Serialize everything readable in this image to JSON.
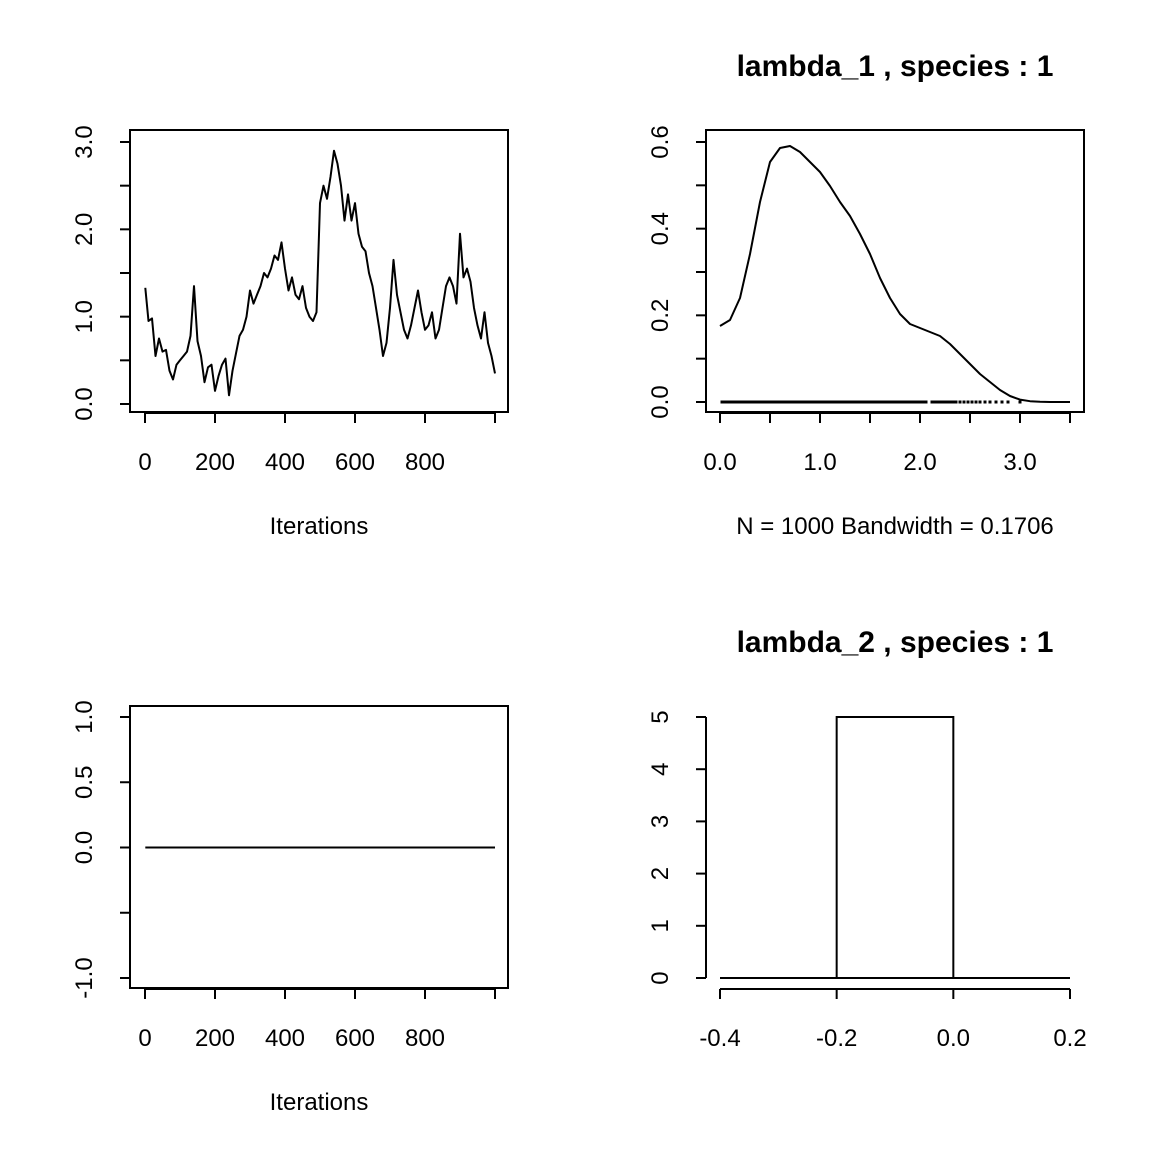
{
  "chart_data": [
    {
      "type": "line",
      "title": "",
      "xlabel": "Iterations",
      "ylabel": "",
      "xlim": [
        0,
        1000
      ],
      "ylim": [
        0,
        3.0
      ],
      "x_ticks": [
        "0",
        "200",
        "400",
        "600",
        "800",
        ""
      ],
      "y_ticks": [
        "0.0",
        "",
        "1.0",
        "",
        "2.0",
        "",
        "3.0"
      ],
      "series": [
        {
          "x": [
            1,
            10,
            20,
            30,
            40,
            50,
            60,
            70,
            80,
            90,
            100,
            110,
            120,
            130,
            140,
            150,
            160,
            170,
            180,
            190,
            200,
            210,
            220,
            230,
            240,
            250,
            260,
            270,
            280,
            290,
            300,
            310,
            320,
            330,
            340,
            350,
            360,
            370,
            380,
            390,
            400,
            410,
            420,
            430,
            440,
            450,
            460,
            470,
            480,
            490,
            500,
            510,
            520,
            530,
            540,
            550,
            560,
            570,
            580,
            590,
            600,
            610,
            620,
            630,
            640,
            650,
            660,
            670,
            680,
            690,
            700,
            710,
            720,
            730,
            740,
            750,
            760,
            770,
            780,
            790,
            800,
            810,
            820,
            830,
            840,
            850,
            860,
            870,
            880,
            890,
            900,
            910,
            920,
            930,
            940,
            950,
            960,
            970,
            980,
            990,
            1000
          ],
          "values": [
            1.33,
            0.95,
            0.98,
            0.55,
            0.75,
            0.6,
            0.62,
            0.38,
            0.28,
            0.45,
            0.5,
            0.55,
            0.6,
            0.78,
            1.35,
            0.72,
            0.55,
            0.25,
            0.42,
            0.45,
            0.15,
            0.32,
            0.45,
            0.52,
            0.1,
            0.38,
            0.58,
            0.78,
            0.85,
            1.0,
            1.3,
            1.15,
            1.25,
            1.35,
            1.5,
            1.45,
            1.55,
            1.7,
            1.65,
            1.85,
            1.55,
            1.3,
            1.45,
            1.25,
            1.2,
            1.35,
            1.1,
            1.0,
            0.95,
            1.05,
            2.3,
            2.5,
            2.35,
            2.6,
            2.9,
            2.75,
            2.5,
            2.1,
            2.4,
            2.1,
            2.3,
            1.95,
            1.8,
            1.75,
            1.5,
            1.35,
            1.1,
            0.85,
            0.55,
            0.7,
            1.1,
            1.65,
            1.25,
            1.05,
            0.85,
            0.75,
            0.9,
            1.1,
            1.3,
            1.05,
            0.85,
            0.9,
            1.05,
            0.75,
            0.85,
            1.1,
            1.35,
            1.45,
            1.35,
            1.15,
            1.95,
            1.45,
            1.55,
            1.4,
            1.1,
            0.9,
            0.75,
            1.05,
            0.7,
            0.55,
            0.35
          ]
        }
      ]
    },
    {
      "type": "line",
      "title": "lambda_1 , species :  1",
      "xlabel": "N = 1000   Bandwidth = 0.1706",
      "ylabel": "",
      "xlim": [
        0,
        3.5
      ],
      "ylim": [
        0,
        0.65
      ],
      "x_ticks": [
        "0.0",
        "",
        "1.0",
        "",
        "2.0",
        "",
        "3.0",
        ""
      ],
      "y_ticks": [
        "0.0",
        "",
        "0.2",
        "",
        "0.4",
        "",
        "0.6"
      ],
      "series": [
        {
          "x": [
            0.0,
            0.1,
            0.2,
            0.3,
            0.4,
            0.5,
            0.6,
            0.7,
            0.8,
            0.9,
            1.0,
            1.1,
            1.2,
            1.3,
            1.4,
            1.5,
            1.6,
            1.7,
            1.8,
            1.9,
            2.0,
            2.1,
            2.2,
            2.3,
            2.4,
            2.5,
            2.6,
            2.7,
            2.8,
            2.9,
            3.0,
            3.1,
            3.2,
            3.3,
            3.4,
            3.5
          ],
          "values": [
            0.19,
            0.205,
            0.26,
            0.37,
            0.5,
            0.6,
            0.635,
            0.64,
            0.625,
            0.6,
            0.575,
            0.54,
            0.5,
            0.465,
            0.42,
            0.37,
            0.31,
            0.26,
            0.22,
            0.195,
            0.185,
            0.175,
            0.165,
            0.145,
            0.12,
            0.095,
            0.07,
            0.05,
            0.03,
            0.015,
            0.006,
            0.002,
            0.0005,
            0.0001,
            0.0,
            0.0
          ]
        }
      ],
      "rug": [
        0.02,
        0.05,
        0.08,
        0.11,
        0.14,
        0.17,
        0.2,
        0.23,
        0.26,
        0.29,
        0.32,
        0.35,
        0.38,
        0.41,
        0.44,
        0.47,
        0.5,
        0.53,
        0.56,
        0.59,
        0.62,
        0.65,
        0.68,
        0.71,
        0.74,
        0.77,
        0.8,
        0.83,
        0.86,
        0.89,
        0.92,
        0.95,
        0.98,
        1.01,
        1.04,
        1.07,
        1.1,
        1.13,
        1.16,
        1.19,
        1.22,
        1.25,
        1.28,
        1.31,
        1.34,
        1.37,
        1.4,
        1.43,
        1.46,
        1.49,
        1.52,
        1.55,
        1.58,
        1.61,
        1.64,
        1.67,
        1.7,
        1.73,
        1.76,
        1.79,
        1.82,
        1.85,
        1.88,
        1.91,
        1.94,
        1.97,
        2.0,
        2.03,
        2.06,
        2.12,
        2.15,
        2.18,
        2.21,
        2.24,
        2.27,
        2.3,
        2.33,
        2.36,
        2.4,
        2.44,
        2.48,
        2.52,
        2.56,
        2.6,
        2.65,
        2.7,
        2.76,
        2.82,
        2.88,
        3.0
      ]
    },
    {
      "type": "line",
      "title": "",
      "xlabel": "Iterations",
      "ylabel": "",
      "xlim": [
        0,
        1000
      ],
      "ylim": [
        -1.0,
        1.0
      ],
      "x_ticks": [
        "0",
        "200",
        "400",
        "600",
        "800",
        ""
      ],
      "y_ticks": [
        "-1.0",
        "",
        "0.0",
        "0.5",
        "1.0"
      ],
      "series": [
        {
          "x": [
            1,
            1000
          ],
          "values": [
            0,
            0
          ]
        }
      ]
    },
    {
      "type": "bar",
      "title": "lambda_2 , species :  1",
      "xlabel": "",
      "ylabel": "",
      "xlim": [
        -0.4,
        0.2
      ],
      "ylim": [
        0,
        5
      ],
      "x_ticks": [
        "-0.4",
        "-0.2",
        "0.0",
        "0.2"
      ],
      "y_ticks": [
        "0",
        "1",
        "2",
        "3",
        "4",
        "5"
      ],
      "bins": [
        {
          "from": -0.2,
          "to": 0.0,
          "value": 5
        }
      ]
    }
  ]
}
